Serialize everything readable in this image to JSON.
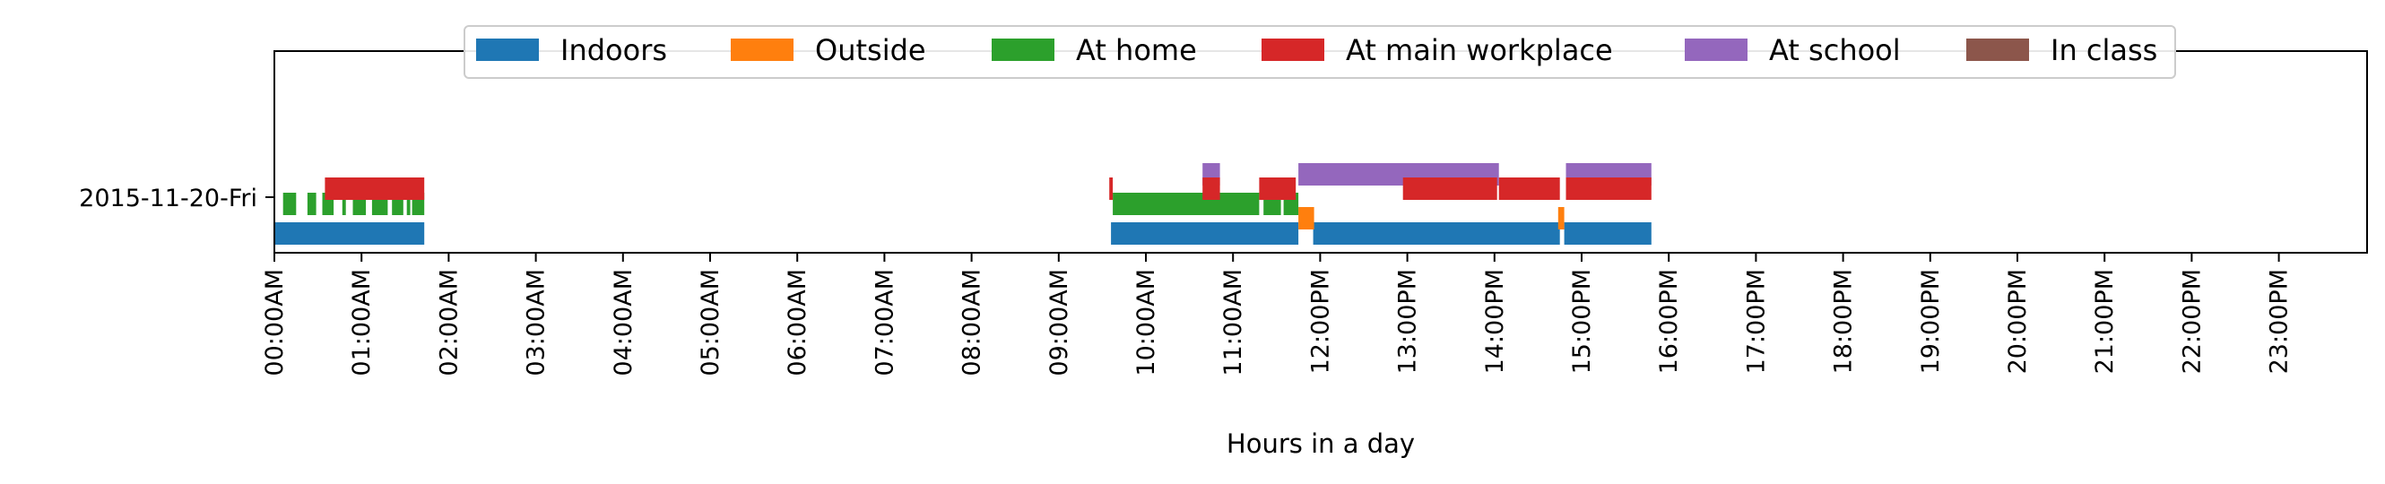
{
  "chart_data": {
    "type": "timeline",
    "title": "",
    "xlabel": "Hours in a day",
    "ylabel": "",
    "xlim": [
      0,
      24
    ],
    "x_ticks": [
      "00:00AM",
      "01:00AM",
      "02:00AM",
      "03:00AM",
      "04:00AM",
      "05:00AM",
      "06:00AM",
      "07:00AM",
      "08:00AM",
      "09:00AM",
      "10:00AM",
      "11:00AM",
      "12:00PM",
      "13:00PM",
      "14:00PM",
      "15:00PM",
      "16:00PM",
      "17:00PM",
      "18:00PM",
      "19:00PM",
      "20:00PM",
      "21:00PM",
      "22:00PM",
      "23:00PM"
    ],
    "y_categories": [
      "2015-11-20-Fri"
    ],
    "grid": false,
    "legend": {
      "placement": "top-center",
      "entries": [
        "Indoors",
        "Outside",
        "At home",
        "At main workplace",
        "At school",
        "In class"
      ]
    },
    "series": [
      {
        "name": "Indoors",
        "color": "#1f77b4",
        "intervals": [
          [
            0.0,
            1.72
          ],
          [
            9.6,
            11.75
          ],
          [
            11.92,
            14.75
          ],
          [
            14.8,
            15.8
          ]
        ]
      },
      {
        "name": "Outside",
        "color": "#ff7f0e",
        "intervals": [
          [
            11.75,
            11.93
          ],
          [
            14.73,
            14.8
          ]
        ]
      },
      {
        "name": "At home",
        "color": "#2ca02c",
        "intervals": [
          [
            0.1,
            0.25
          ],
          [
            0.38,
            0.48
          ],
          [
            0.55,
            0.68
          ],
          [
            0.78,
            0.82
          ],
          [
            0.9,
            1.05
          ],
          [
            1.12,
            1.3
          ],
          [
            1.35,
            1.48
          ],
          [
            1.52,
            1.56
          ],
          [
            1.58,
            1.72
          ],
          [
            9.62,
            11.3
          ],
          [
            11.35,
            11.55
          ],
          [
            11.58,
            11.75
          ]
        ]
      },
      {
        "name": "At main workplace",
        "color": "#d62728",
        "intervals": [
          [
            0.58,
            1.72
          ],
          [
            9.58,
            9.62
          ],
          [
            10.65,
            10.85
          ],
          [
            11.3,
            11.72
          ],
          [
            12.95,
            14.03
          ],
          [
            14.05,
            14.75
          ],
          [
            14.82,
            15.8
          ]
        ]
      },
      {
        "name": "At school",
        "color": "#9467bd",
        "intervals": [
          [
            10.65,
            10.85
          ],
          [
            11.75,
            14.05
          ],
          [
            14.82,
            15.8
          ]
        ]
      },
      {
        "name": "In class",
        "color": "#8c564b",
        "intervals": []
      }
    ]
  }
}
